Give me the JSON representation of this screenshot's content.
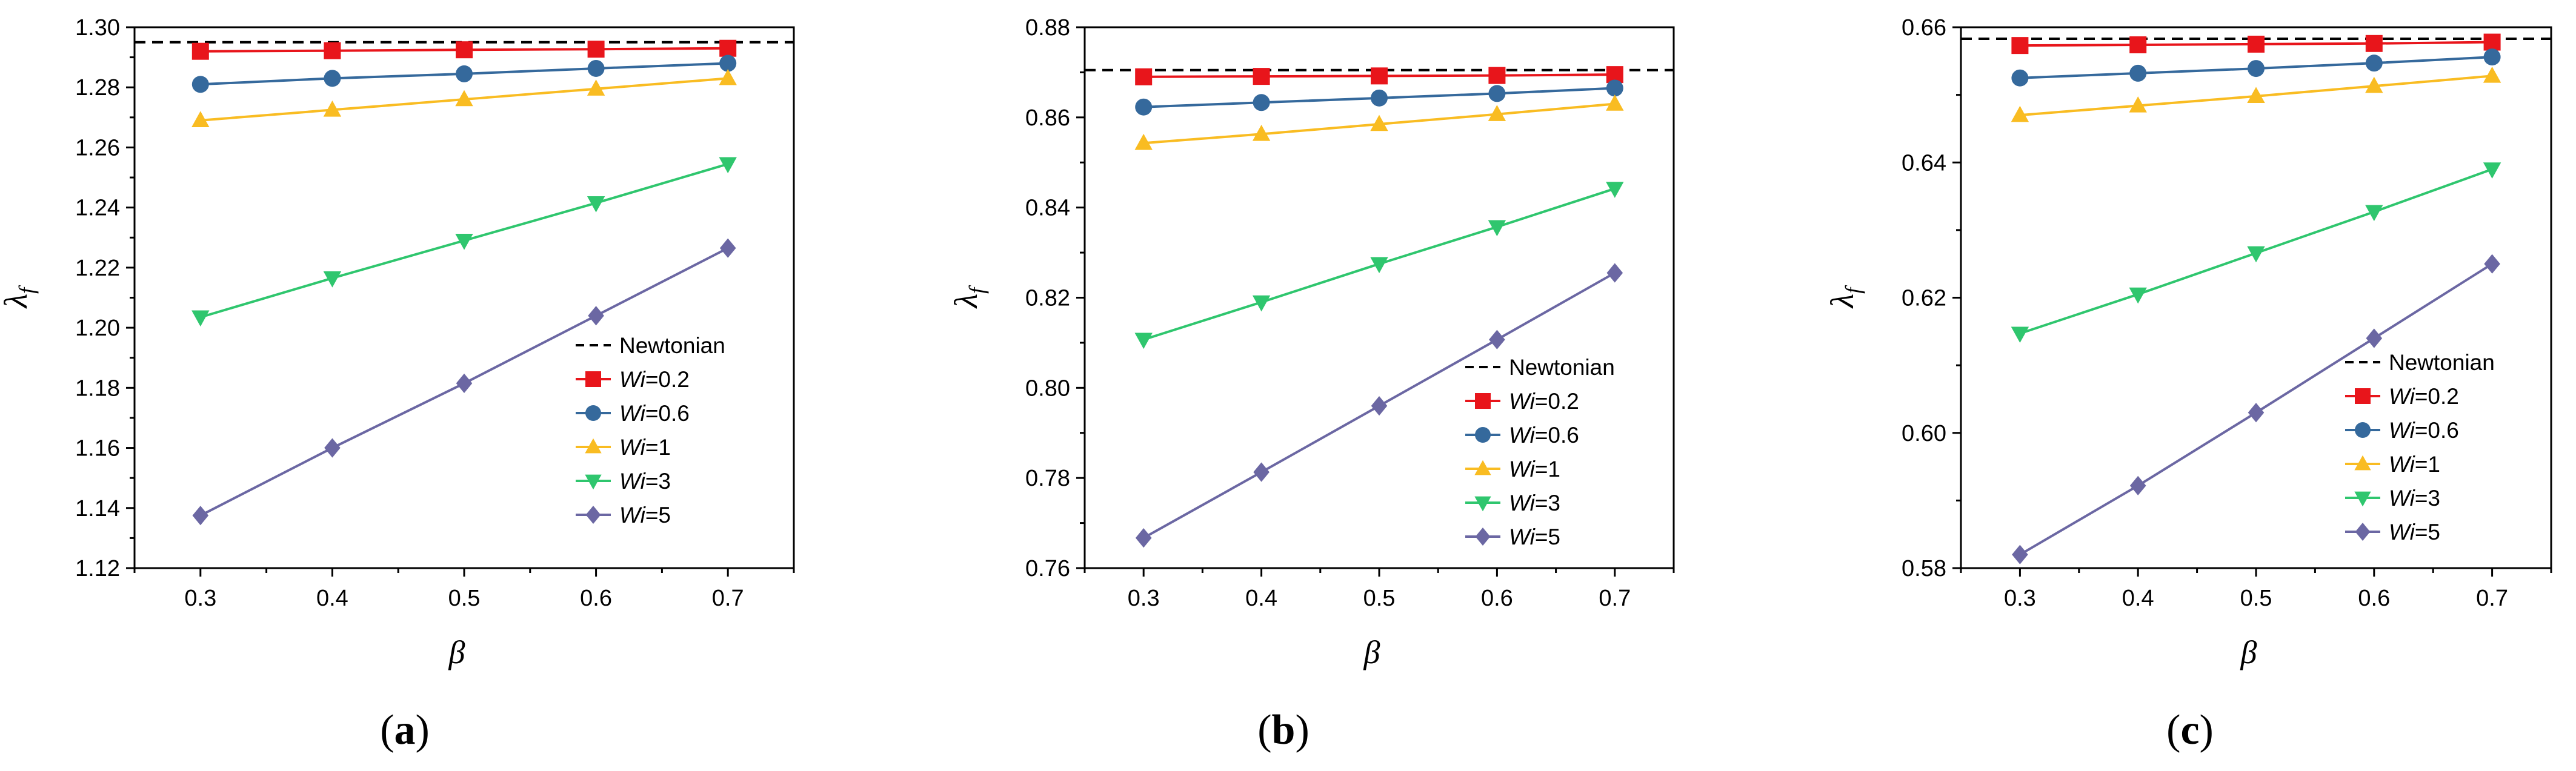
{
  "chart_data": [
    {
      "type": "line",
      "panel_label": "a",
      "xlabel": "β",
      "ylabel": "λ",
      "ylabel_sub": "f",
      "x": [
        0.3,
        0.4,
        0.5,
        0.6,
        0.7
      ],
      "x_ticks": [
        "0.3",
        "0.4",
        "0.5",
        "0.6",
        "0.7"
      ],
      "xlim": [
        0.25,
        0.75
      ],
      "ylim": [
        1.12,
        1.3
      ],
      "y_ticks": [
        1.12,
        1.14,
        1.16,
        1.18,
        1.2,
        1.22,
        1.24,
        1.26,
        1.28,
        1.3
      ],
      "y_tick_labels": [
        "1.12",
        "1.14",
        "1.16",
        "1.18",
        "1.20",
        "1.22",
        "1.24",
        "1.26",
        "1.28",
        "1.30"
      ],
      "newtonian": {
        "name": "Newtonian",
        "value": 1.295
      },
      "series": [
        {
          "name": "Wi=0.2",
          "values": [
            1.292,
            1.2922,
            1.2925,
            1.2927,
            1.293
          ]
        },
        {
          "name": "Wi=0.6",
          "values": [
            1.281,
            1.283,
            1.2845,
            1.2863,
            1.288
          ]
        },
        {
          "name": "Wi=1",
          "values": [
            1.269,
            1.2725,
            1.276,
            1.2795,
            1.283
          ]
        },
        {
          "name": "Wi=3",
          "values": [
            1.2035,
            1.2165,
            1.229,
            1.2415,
            1.2545
          ]
        },
        {
          "name": "Wi=5",
          "values": [
            1.1375,
            1.16,
            1.1815,
            1.204,
            1.2265
          ]
        }
      ]
    },
    {
      "type": "line",
      "panel_label": "b",
      "xlabel": "β",
      "ylabel": "λ",
      "ylabel_sub": "f",
      "x": [
        0.3,
        0.4,
        0.5,
        0.6,
        0.7
      ],
      "x_ticks": [
        "0.3",
        "0.4",
        "0.5",
        "0.6",
        "0.7"
      ],
      "xlim": [
        0.25,
        0.75
      ],
      "ylim": [
        0.76,
        0.88
      ],
      "y_ticks": [
        0.76,
        0.78,
        0.8,
        0.82,
        0.84,
        0.86,
        0.88
      ],
      "y_tick_labels": [
        "0.76",
        "0.78",
        "0.80",
        "0.82",
        "0.84",
        "0.86",
        "0.88"
      ],
      "newtonian": {
        "name": "Newtonian",
        "value": 0.8705
      },
      "series": [
        {
          "name": "Wi=0.2",
          "values": [
            0.869,
            0.8691,
            0.8692,
            0.8693,
            0.8695
          ]
        },
        {
          "name": "Wi=0.6",
          "values": [
            0.8623,
            0.8633,
            0.8643,
            0.8653,
            0.8665
          ]
        },
        {
          "name": "Wi=1",
          "values": [
            0.8543,
            0.8563,
            0.8585,
            0.8607,
            0.863
          ]
        },
        {
          "name": "Wi=3",
          "values": [
            0.8107,
            0.819,
            0.8275,
            0.8357,
            0.8442
          ]
        },
        {
          "name": "Wi=5",
          "values": [
            0.7667,
            0.7813,
            0.796,
            0.8107,
            0.8255
          ]
        }
      ]
    },
    {
      "type": "line",
      "panel_label": "c",
      "xlabel": "β",
      "ylabel": "λ",
      "ylabel_sub": "f",
      "x": [
        0.3,
        0.4,
        0.5,
        0.6,
        0.7
      ],
      "x_ticks": [
        "0.3",
        "0.4",
        "0.5",
        "0.6",
        "0.7"
      ],
      "xlim": [
        0.25,
        0.75
      ],
      "ylim": [
        0.58,
        0.66
      ],
      "y_ticks": [
        0.58,
        0.6,
        0.62,
        0.64,
        0.66
      ],
      "y_tick_labels": [
        "0.58",
        "0.60",
        "0.62",
        "0.64",
        "0.66"
      ],
      "newtonian": {
        "name": "Newtonian",
        "value": 0.6583
      },
      "series": [
        {
          "name": "Wi=0.2",
          "values": [
            0.6573,
            0.6574,
            0.6575,
            0.6576,
            0.6578
          ]
        },
        {
          "name": "Wi=0.6",
          "values": [
            0.6525,
            0.6532,
            0.6539,
            0.6547,
            0.6556
          ]
        },
        {
          "name": "Wi=1",
          "values": [
            0.647,
            0.6484,
            0.6498,
            0.6513,
            0.6528
          ]
        },
        {
          "name": "Wi=3",
          "values": [
            0.6147,
            0.6205,
            0.6266,
            0.6327,
            0.639
          ]
        },
        {
          "name": "Wi=5",
          "values": [
            0.582,
            0.5922,
            0.603,
            0.614,
            0.625
          ]
        }
      ]
    }
  ],
  "legend": {
    "newtonian_label": "Newtonian",
    "entries": [
      {
        "prefix": "Wi",
        "suffix": "=0.2",
        "color": "#e8151b",
        "marker": "square"
      },
      {
        "prefix": "Wi",
        "suffix": "=0.6",
        "color": "#35699c",
        "marker": "circle"
      },
      {
        "prefix": "Wi",
        "suffix": "=1",
        "color": "#f9bc22",
        "marker": "triangle-up"
      },
      {
        "prefix": "Wi",
        "suffix": "=3",
        "color": "#2fc66e",
        "marker": "triangle-down"
      },
      {
        "prefix": "Wi",
        "suffix": "=5",
        "color": "#6b67a3",
        "marker": "diamond"
      }
    ]
  },
  "colors": {
    "newtonian_line": "#000000",
    "axes": "#000000"
  }
}
